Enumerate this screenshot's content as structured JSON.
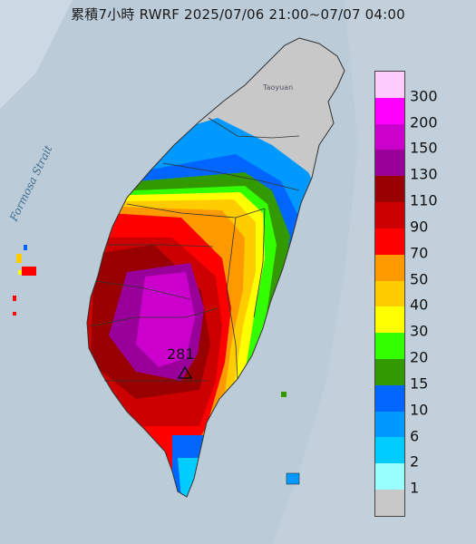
{
  "title": "累積7小時 RWRF 2025/07/06 21:00~07/07 04:00",
  "sea_label": "Formosa Strait",
  "city_label": "Taoyuan",
  "max_marker": {
    "value": "281",
    "symbol": "triangle-marker"
  },
  "legend": {
    "levels": [
      {
        "label": "300",
        "color": "#ffccff"
      },
      {
        "label": "200",
        "color": "#ff00ff"
      },
      {
        "label": "150",
        "color": "#cc00cc"
      },
      {
        "label": "130",
        "color": "#990099"
      },
      {
        "label": "110",
        "color": "#990000"
      },
      {
        "label": "90",
        "color": "#cc0000"
      },
      {
        "label": "70",
        "color": "#ff0000"
      },
      {
        "label": "50",
        "color": "#ff9900"
      },
      {
        "label": "40",
        "color": "#ffcc00"
      },
      {
        "label": "30",
        "color": "#ffff00"
      },
      {
        "label": "20",
        "color": "#33ff00"
      },
      {
        "label": "15",
        "color": "#339900"
      },
      {
        "label": "10",
        "color": "#0066ff"
      },
      {
        "label": "6",
        "color": "#0099ff"
      },
      {
        "label": "2",
        "color": "#00ccff"
      },
      {
        "label": "1",
        "color": "#99ffff"
      },
      {
        "label": "",
        "color": "#c8c8c8"
      }
    ]
  }
}
